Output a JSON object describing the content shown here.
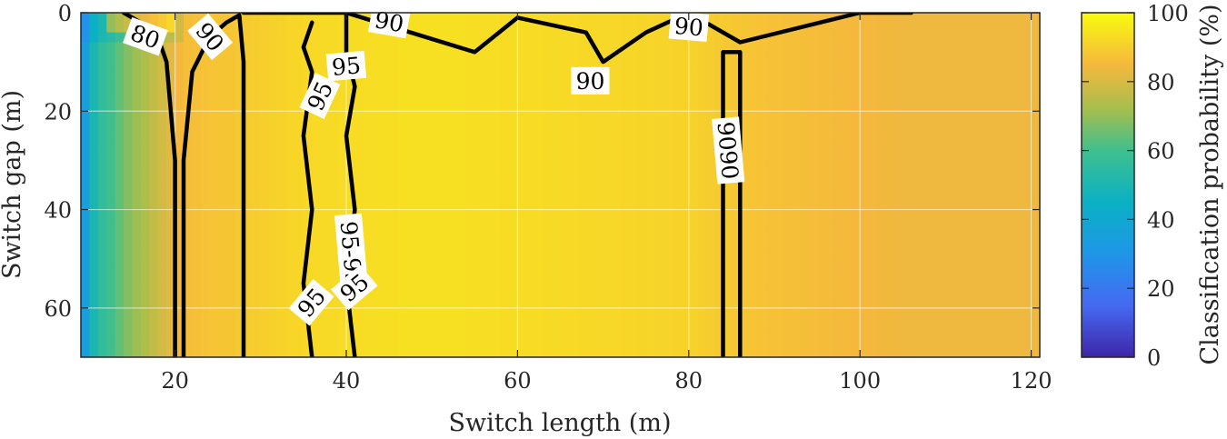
{
  "chart_data": {
    "type": "heatmap",
    "xlabel": "Switch length (m)",
    "ylabel": "Switch gap (m)",
    "xlim": [
      9,
      121
    ],
    "ylim": [
      0,
      70
    ],
    "y_reversed": true,
    "xticks": [
      20,
      40,
      60,
      80,
      100,
      120
    ],
    "yticks": [
      0,
      20,
      40,
      60
    ],
    "grid": true,
    "colormap": "parula",
    "colorbar": {
      "label": "Classification probability (%)",
      "range": [
        0,
        100
      ],
      "ticks": [
        0,
        20,
        40,
        60,
        80,
        100
      ]
    },
    "probability_by_length": {
      "x": [
        9,
        10,
        11,
        12,
        13,
        14,
        15,
        16,
        17,
        18,
        19,
        20,
        21,
        23,
        25,
        27,
        28,
        30,
        35,
        40,
        50,
        60,
        70,
        80,
        84,
        86,
        90,
        95,
        100,
        105,
        110,
        121
      ],
      "value": [
        25,
        45,
        55,
        58,
        62,
        66,
        70,
        72,
        75,
        78,
        80,
        84,
        86,
        87,
        88,
        88,
        89,
        90,
        92,
        93,
        94,
        93,
        92,
        91,
        89,
        88,
        87,
        86,
        85,
        84,
        84,
        84
      ]
    },
    "contours": [
      {
        "level": 80,
        "x": [
          14,
          16,
          18,
          19,
          20,
          20
        ],
        "y": [
          0,
          2,
          5,
          10,
          30,
          70
        ]
      },
      {
        "level": 90,
        "x": [
          21,
          21,
          22,
          24,
          26,
          27.5,
          28,
          28
        ],
        "y": [
          70,
          30,
          12,
          5,
          2,
          0.5,
          10,
          70
        ]
      },
      {
        "level": 90,
        "x": [
          28,
          40,
          55,
          60,
          68,
          70,
          75,
          80,
          86,
          100,
          106
        ],
        "y": [
          0,
          0,
          8,
          1,
          4,
          10,
          4,
          0,
          6,
          0,
          0
        ]
      },
      {
        "level": 90,
        "x": [
          84,
          84,
          86,
          86
        ],
        "y": [
          70,
          8,
          8,
          70
        ]
      },
      {
        "level": 95,
        "x": [
          36,
          35,
          36,
          35,
          36,
          35,
          36
        ],
        "y": [
          70,
          55,
          40,
          25,
          12,
          7,
          2
        ]
      },
      {
        "level": 95,
        "x": [
          41,
          40,
          41,
          40,
          41,
          40,
          40
        ],
        "y": [
          70,
          55,
          40,
          25,
          15,
          8,
          0
        ]
      }
    ],
    "contour_labels": [
      {
        "text": "80",
        "x": 16.5,
        "y": 5,
        "angle": 20
      },
      {
        "text": "90",
        "x": 24,
        "y": 5,
        "angle": 50
      },
      {
        "text": "90",
        "x": 45,
        "y": 2,
        "angle": 10
      },
      {
        "text": "90",
        "x": 68.5,
        "y": 14,
        "angle": 0
      },
      {
        "text": "90",
        "x": 80,
        "y": 3,
        "angle": 5
      },
      {
        "text": "9090",
        "x": 84.5,
        "y": 28,
        "angle": 85
      },
      {
        "text": "95",
        "x": 40,
        "y": 11,
        "angle": -5
      },
      {
        "text": "95",
        "x": 37,
        "y": 17,
        "angle": -65
      },
      {
        "text": "95-95",
        "x": 40.5,
        "y": 49,
        "angle": 85
      },
      {
        "text": "95",
        "x": 36,
        "y": 59,
        "angle": -50
      },
      {
        "text": "95",
        "x": 41,
        "y": 56,
        "angle": -40
      }
    ]
  }
}
